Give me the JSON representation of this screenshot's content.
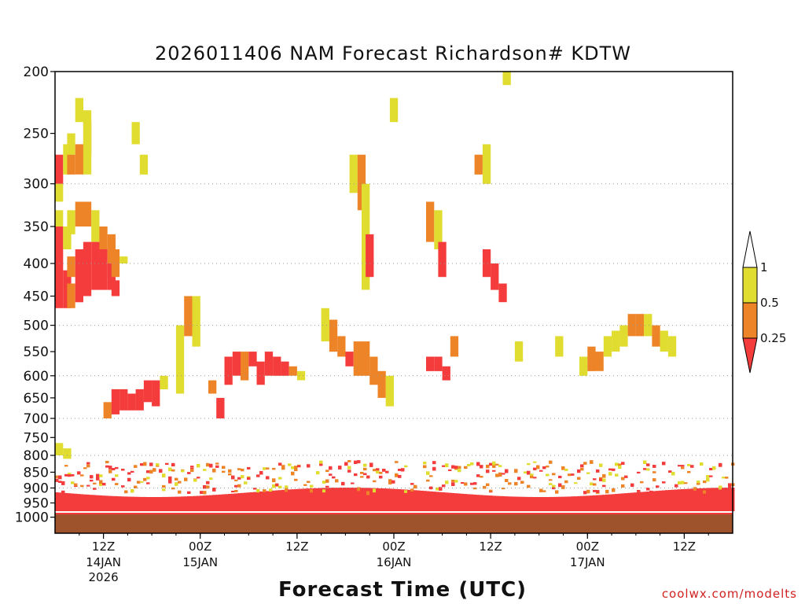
{
  "chart_data": {
    "type": "heatmap",
    "title": "2026011406 NAM Forecast Richardson# KDTW",
    "xlabel": "Forecast Time (UTC)",
    "credit": "coolwx.com/modelts",
    "y_axis": {
      "scale": "pressure (hPa)",
      "ticks": [
        200,
        250,
        300,
        350,
        400,
        450,
        500,
        550,
        600,
        650,
        700,
        750,
        800,
        850,
        900,
        950,
        1000
      ],
      "range": [
        200,
        1030
      ],
      "reversed": true,
      "gridlines_at": [
        300,
        400,
        500,
        600,
        700,
        800,
        900
      ]
    },
    "x_axis": {
      "range_hours": [
        0,
        84
      ],
      "ticks": [
        {
          "hour": 6,
          "label": "12Z",
          "sub": "14JAN",
          "sub2": "2026"
        },
        {
          "hour": 18,
          "label": "00Z",
          "sub": "15JAN",
          "sub2": ""
        },
        {
          "hour": 30,
          "label": "12Z",
          "sub": "",
          "sub2": ""
        },
        {
          "hour": 42,
          "label": "00Z",
          "sub": "16JAN",
          "sub2": ""
        },
        {
          "hour": 54,
          "label": "12Z",
          "sub": "",
          "sub2": ""
        },
        {
          "hour": 66,
          "label": "00Z",
          "sub": "17JAN",
          "sub2": ""
        },
        {
          "hour": 78,
          "label": "12Z",
          "sub": "",
          "sub2": ""
        }
      ]
    },
    "legend": {
      "placement": "right",
      "levels": [
        {
          "label": "1",
          "range": "> 1",
          "color": "#ffffff"
        },
        {
          "label": "0.5",
          "range": "0.5 – 1",
          "color": "#e0dc30"
        },
        {
          "label": "0.25",
          "range": "0.25 – 0.5",
          "color": "#ee8428"
        },
        {
          "label": "",
          "range": "< 0.25",
          "color": "#f43c3c"
        }
      ]
    },
    "colors": {
      "yellow": "#e0dc30",
      "orange": "#ee8428",
      "red": "#f43c3c",
      "ground": "#9e532c"
    },
    "ground_level_hPa": 990,
    "cells": [
      {
        "h": 0,
        "p": [
          270,
          300
        ],
        "c": "red"
      },
      {
        "h": 0,
        "p": [
          300,
          320
        ],
        "c": "yellow"
      },
      {
        "h": 0,
        "p": [
          330,
          350
        ],
        "c": "yellow"
      },
      {
        "h": 0,
        "p": [
          350,
          470
        ],
        "c": "red"
      },
      {
        "h": 0,
        "p": [
          765,
          800
        ],
        "c": "yellow"
      },
      {
        "h": 1,
        "p": [
          260,
          290
        ],
        "c": "yellow"
      },
      {
        "h": 1,
        "p": [
          350,
          380
        ],
        "c": "yellow"
      },
      {
        "h": 1,
        "p": [
          410,
          470
        ],
        "c": "red"
      },
      {
        "h": 1,
        "p": [
          780,
          810
        ],
        "c": "yellow"
      },
      {
        "h": 1.5,
        "p": [
          330,
          360
        ],
        "c": "yellow"
      },
      {
        "h": 1.5,
        "p": [
          250,
          270
        ],
        "c": "yellow"
      },
      {
        "h": 1.5,
        "p": [
          270,
          290
        ],
        "c": "orange"
      },
      {
        "h": 1.5,
        "p": [
          390,
          420
        ],
        "c": "orange"
      },
      {
        "h": 1.5,
        "p": [
          430,
          470
        ],
        "c": "orange"
      },
      {
        "h": 2.5,
        "p": [
          220,
          240
        ],
        "c": "yellow"
      },
      {
        "h": 2.5,
        "p": [
          260,
          290
        ],
        "c": "orange"
      },
      {
        "h": 2.5,
        "p": [
          320,
          350
        ],
        "c": "orange"
      },
      {
        "h": 2.5,
        "p": [
          380,
          460
        ],
        "c": "red"
      },
      {
        "h": 3.5,
        "p": [
          240,
          270
        ],
        "c": "orange"
      },
      {
        "h": 3.5,
        "p": [
          230,
          290
        ],
        "c": "yellow"
      },
      {
        "h": 3.5,
        "p": [
          320,
          350
        ],
        "c": "orange"
      },
      {
        "h": 3.5,
        "p": [
          370,
          450
        ],
        "c": "red"
      },
      {
        "h": 4.5,
        "p": [
          330,
          370
        ],
        "c": "yellow"
      },
      {
        "h": 4.5,
        "p": [
          370,
          440
        ],
        "c": "red"
      },
      {
        "h": 5.5,
        "p": [
          350,
          390
        ],
        "c": "orange"
      },
      {
        "h": 5.5,
        "p": [
          380,
          440
        ],
        "c": "red"
      },
      {
        "h": 6.5,
        "p": [
          360,
          400
        ],
        "c": "orange"
      },
      {
        "h": 6.5,
        "p": [
          400,
          440
        ],
        "c": "red"
      },
      {
        "h": 7,
        "p": [
          380,
          420
        ],
        "c": "orange"
      },
      {
        "h": 7,
        "p": [
          425,
          450
        ],
        "c": "red"
      },
      {
        "h": 8,
        "p": [
          390,
          400
        ],
        "c": "yellow"
      },
      {
        "h": 9.5,
        "p": [
          240,
          260
        ],
        "c": "yellow"
      },
      {
        "h": 10.5,
        "p": [
          270,
          290
        ],
        "c": "yellow"
      },
      {
        "h": 6,
        "p": [
          660,
          700
        ],
        "c": "orange"
      },
      {
        "h": 7,
        "p": [
          630,
          690
        ],
        "c": "red"
      },
      {
        "h": 8,
        "p": [
          630,
          680
        ],
        "c": "red"
      },
      {
        "h": 9,
        "p": [
          640,
          680
        ],
        "c": "red"
      },
      {
        "h": 10,
        "p": [
          630,
          680
        ],
        "c": "red"
      },
      {
        "h": 11,
        "p": [
          610,
          660
        ],
        "c": "red"
      },
      {
        "h": 12,
        "p": [
          610,
          670
        ],
        "c": "red"
      },
      {
        "h": 13,
        "p": [
          600,
          630
        ],
        "c": "yellow"
      },
      {
        "h": 15,
        "p": [
          500,
          640
        ],
        "c": "yellow"
      },
      {
        "h": 16,
        "p": [
          450,
          520
        ],
        "c": "orange"
      },
      {
        "h": 17,
        "p": [
          450,
          540
        ],
        "c": "yellow"
      },
      {
        "h": 19,
        "p": [
          610,
          640
        ],
        "c": "orange"
      },
      {
        "h": 20,
        "p": [
          650,
          700
        ],
        "c": "red"
      },
      {
        "h": 21,
        "p": [
          560,
          620
        ],
        "c": "red"
      },
      {
        "h": 22,
        "p": [
          550,
          600
        ],
        "c": "red"
      },
      {
        "h": 23,
        "p": [
          550,
          610
        ],
        "c": "orange"
      },
      {
        "h": 24,
        "p": [
          550,
          580
        ],
        "c": "red"
      },
      {
        "h": 25,
        "p": [
          570,
          620
        ],
        "c": "red"
      },
      {
        "h": 26,
        "p": [
          550,
          600
        ],
        "c": "red"
      },
      {
        "h": 27,
        "p": [
          560,
          600
        ],
        "c": "red"
      },
      {
        "h": 28,
        "p": [
          570,
          600
        ],
        "c": "red"
      },
      {
        "h": 29,
        "p": [
          580,
          600
        ],
        "c": "orange"
      },
      {
        "h": 30,
        "p": [
          590,
          610
        ],
        "c": "yellow"
      },
      {
        "h": 33,
        "p": [
          470,
          530
        ],
        "c": "yellow"
      },
      {
        "h": 34,
        "p": [
          490,
          550
        ],
        "c": "orange"
      },
      {
        "h": 35,
        "p": [
          520,
          560
        ],
        "c": "orange"
      },
      {
        "h": 36,
        "p": [
          550,
          580
        ],
        "c": "red"
      },
      {
        "h": 37,
        "p": [
          530,
          600
        ],
        "c": "orange"
      },
      {
        "h": 38,
        "p": [
          530,
          600
        ],
        "c": "orange"
      },
      {
        "h": 39,
        "p": [
          560,
          620
        ],
        "c": "orange"
      },
      {
        "h": 40,
        "p": [
          590,
          650
        ],
        "c": "orange"
      },
      {
        "h": 41,
        "p": [
          600,
          670
        ],
        "c": "yellow"
      },
      {
        "h": 36.5,
        "p": [
          270,
          310
        ],
        "c": "yellow"
      },
      {
        "h": 37.5,
        "p": [
          270,
          330
        ],
        "c": "orange"
      },
      {
        "h": 38,
        "p": [
          300,
          440
        ],
        "c": "yellow"
      },
      {
        "h": 38.5,
        "p": [
          360,
          420
        ],
        "c": "red"
      },
      {
        "h": 41.5,
        "p": [
          220,
          240
        ],
        "c": "yellow"
      },
      {
        "h": 46,
        "p": [
          320,
          370
        ],
        "c": "orange"
      },
      {
        "h": 47,
        "p": [
          330,
          380
        ],
        "c": "yellow"
      },
      {
        "h": 47.5,
        "p": [
          370,
          420
        ],
        "c": "red"
      },
      {
        "h": 46,
        "p": [
          560,
          590
        ],
        "c": "red"
      },
      {
        "h": 47,
        "p": [
          560,
          590
        ],
        "c": "red"
      },
      {
        "h": 48,
        "p": [
          580,
          610
        ],
        "c": "red"
      },
      {
        "h": 49,
        "p": [
          520,
          560
        ],
        "c": "orange"
      },
      {
        "h": 52,
        "p": [
          270,
          290
        ],
        "c": "orange"
      },
      {
        "h": 53,
        "p": [
          260,
          300
        ],
        "c": "yellow"
      },
      {
        "h": 53,
        "p": [
          380,
          420
        ],
        "c": "red"
      },
      {
        "h": 54,
        "p": [
          400,
          440
        ],
        "c": "red"
      },
      {
        "h": 55,
        "p": [
          430,
          460
        ],
        "c": "red"
      },
      {
        "h": 55.5,
        "p": [
          200,
          210
        ],
        "c": "yellow"
      },
      {
        "h": 57,
        "p": [
          530,
          570
        ],
        "c": "yellow"
      },
      {
        "h": 62,
        "p": [
          520,
          560
        ],
        "c": "yellow"
      },
      {
        "h": 65,
        "p": [
          560,
          600
        ],
        "c": "yellow"
      },
      {
        "h": 66,
        "p": [
          540,
          590
        ],
        "c": "orange"
      },
      {
        "h": 67,
        "p": [
          550,
          590
        ],
        "c": "orange"
      },
      {
        "h": 68,
        "p": [
          520,
          560
        ],
        "c": "yellow"
      },
      {
        "h": 69,
        "p": [
          510,
          550
        ],
        "c": "yellow"
      },
      {
        "h": 70,
        "p": [
          500,
          540
        ],
        "c": "yellow"
      },
      {
        "h": 71,
        "p": [
          480,
          520
        ],
        "c": "orange"
      },
      {
        "h": 72,
        "p": [
          480,
          520
        ],
        "c": "orange"
      },
      {
        "h": 73,
        "p": [
          480,
          520
        ],
        "c": "yellow"
      },
      {
        "h": 74,
        "p": [
          500,
          540
        ],
        "c": "orange"
      },
      {
        "h": 75,
        "p": [
          510,
          550
        ],
        "c": "yellow"
      },
      {
        "h": 76,
        "p": [
          520,
          560
        ],
        "c": "yellow"
      }
    ]
  }
}
